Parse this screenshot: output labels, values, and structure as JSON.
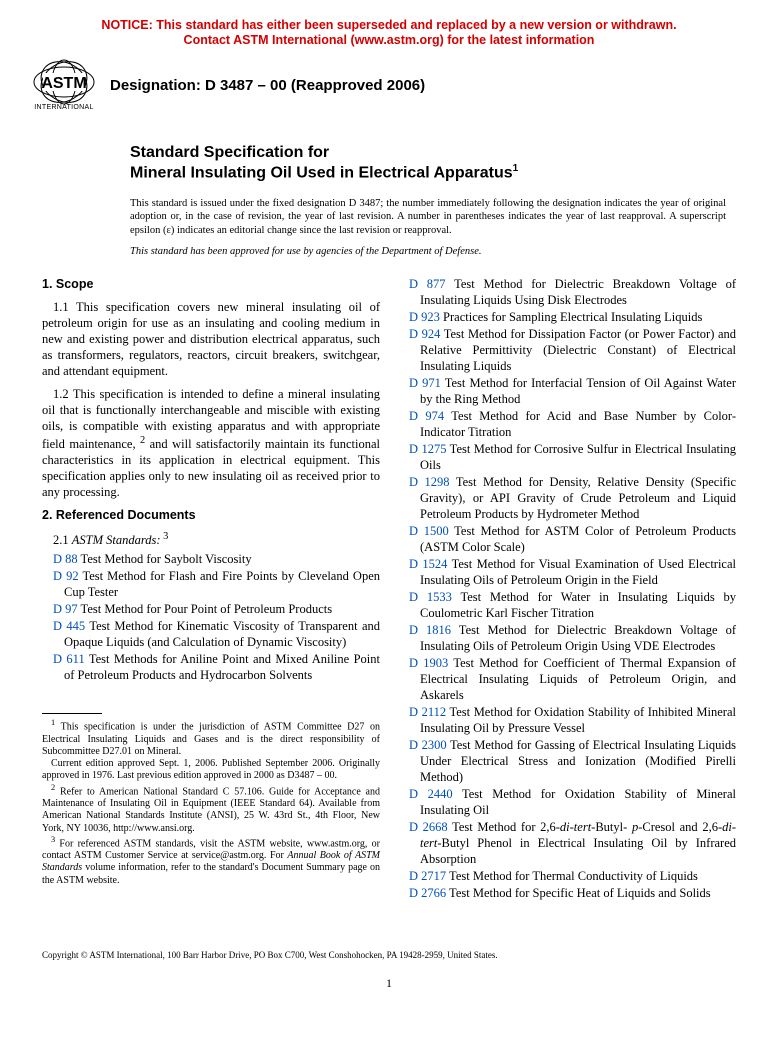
{
  "notice": {
    "line1": "NOTICE: This standard has either been superseded and replaced by a new version or withdrawn.",
    "line2": "Contact ASTM International (www.astm.org) for the latest information"
  },
  "header": {
    "logo_sub": "INTERNATIONAL",
    "designation": "Designation: D 3487 – 00 (Reapproved 2006)"
  },
  "title": {
    "line1": "Standard Specification for",
    "line2": "Mineral Insulating Oil Used in Electrical Apparatus",
    "sup": "1"
  },
  "intro_parts": {
    "a": "This standard is issued under the fixed designation D 3487; the number immediately following the designation indicates the year of original adoption or, in the case of revision, the year of last revision. A number in parentheses indicates the year of last reapproval. A superscript epsilon (",
    "b": ") indicates an editorial change since the last revision or reapproval."
  },
  "dod": "This standard has been approved for use by agencies of the Department of Defense.",
  "sections": {
    "scope_head": "1. Scope",
    "scope_p1": "1.1 This specification covers new mineral insulating oil of petroleum origin for use as an insulating and cooling medium in new and existing power and distribution electrical apparatus, such as transformers, regulators, reactors, circuit breakers, switchgear, and attendant equipment.",
    "scope_p2_parts": {
      "a": "1.2 This specification is intended to define a mineral insulating oil that is functionally interchangeable and miscible with existing oils, is compatible with existing apparatus and with appropriate field maintenance, ",
      "b": " and will satisfactorily maintain its functional characteristics in its application in electrical equipment. This specification applies only to new insulating oil as received prior to any processing."
    },
    "refdoc_head": "2. Referenced Documents",
    "astm_std_parts": {
      "a": "2.1 ",
      "b": "ASTM Standards:",
      "c": " 3"
    }
  },
  "refs_left": [
    {
      "code": "D 88",
      "text": " Test Method for Saybolt Viscosity"
    },
    {
      "code": "D 92",
      "text": " Test Method for Flash and Fire Points by Cleveland Open Cup Tester"
    },
    {
      "code": "D 97",
      "text": " Test Method for Pour Point of Petroleum Products"
    },
    {
      "code": "D 445",
      "text": " Test Method for Kinematic Viscosity of Transparent and Opaque Liquids (and Calculation of Dynamic Viscosity)"
    },
    {
      "code": "D 611",
      "text": " Test Methods for Aniline Point and Mixed Aniline Point of Petroleum Products and Hydrocarbon Solvents"
    }
  ],
  "refs_right": [
    {
      "code": "D 877",
      "text": " Test Method for Dielectric Breakdown Voltage of Insulating Liquids Using Disk Electrodes"
    },
    {
      "code": "D 923",
      "text": " Practices for Sampling Electrical Insulating Liquids"
    },
    {
      "code": "D 924",
      "text": " Test Method for Dissipation Factor (or Power Factor) and Relative Permittivity (Dielectric Constant) of Electrical Insulating Liquids"
    },
    {
      "code": "D 971",
      "text": " Test Method for Interfacial Tension of Oil Against Water by the Ring Method"
    },
    {
      "code": "D 974",
      "text": " Test Method for Acid and Base Number by Color-Indicator Titration"
    },
    {
      "code": "D 1275",
      "text": " Test Method for Corrosive Sulfur in Electrical Insulating Oils"
    },
    {
      "code": "D 1298",
      "text": " Test Method for Density, Relative Density (Specific Gravity), or API Gravity of Crude Petroleum and Liquid Petroleum Products by Hydrometer Method"
    },
    {
      "code": "D 1500",
      "text": " Test Method for ASTM Color of Petroleum Products (ASTM Color Scale)"
    },
    {
      "code": "D 1524",
      "text": " Test Method for Visual Examination of Used Electrical Insulating Oils of Petroleum Origin in the Field"
    },
    {
      "code": "D 1533",
      "text": " Test Method for Water in Insulating Liquids by Coulometric Karl Fischer Titration"
    },
    {
      "code": "D 1816",
      "text": " Test Method for Dielectric Breakdown Voltage of Insulating Oils of Petroleum Origin Using VDE Electrodes"
    },
    {
      "code": "D 1903",
      "text": " Test Method for Coefficient of Thermal Expansion of Electrical Insulating Liquids of Petroleum Origin, and Askarels"
    },
    {
      "code": "D 2112",
      "text": " Test Method for Oxidation Stability of Inhibited Mineral Insulating Oil by Pressure Vessel"
    },
    {
      "code": "D 2300",
      "text": " Test Method for Gassing of Electrical Insulating Liquids Under Electrical Stress and Ionization (Modified Pirelli Method)"
    },
    {
      "code": "D 2440",
      "text": " Test Method for Oxidation Stability of Mineral Insulating Oil"
    },
    {
      "code": "D 2668",
      "text_html": " Test Method for 2,6-<em>di-tert</em>-Butyl- <em>p</em>-Cresol and 2,6-<em>di-tert</em>-Butyl Phenol in Electrical Insulating Oil by Infrared Absorption"
    },
    {
      "code": "D 2717",
      "text": " Test Method for Thermal Conductivity of Liquids"
    },
    {
      "code": "D 2766",
      "text": " Test Method for Specific Heat of Liquids and Solids"
    }
  ],
  "footnotes": {
    "f1_html": "<sup>1</sup> This specification is under the jurisdiction of ASTM Committee D27 on Electrical Insulating Liquids and Gases and is the direct responsibility of Subcommittee D27.01 on Mineral.",
    "f1b": "Current edition approved Sept. 1, 2006. Published September 2006. Originally approved in 1976. Last previous edition approved in 2000 as D3487 – 00.",
    "f2_html": "<sup>2</sup> Refer to American National Standard C 57.106. Guide for Acceptance and Maintenance of Insulating Oil in Equipment (IEEE Standard 64). Available from American National Standards Institute (ANSI), 25 W. 43rd St., 4th Floor, New York, NY 10036, http://www.ansi.org.",
    "f3_html": "<sup>3</sup> For referenced ASTM standards, visit the ASTM website, www.astm.org, or contact ASTM Customer Service at service@astm.org. For <em>Annual Book of ASTM Standards</em> volume information, refer to the standard's Document Summary page on the ASTM website."
  },
  "copyright": "Copyright © ASTM International, 100 Barr Harbor Drive, PO Box C700, West Conshohocken, PA 19428-2959, United States.",
  "page_num": "1",
  "colors": {
    "notice": "#d40000",
    "link": "#0050b3",
    "text": "#000000",
    "bg": "#ffffff"
  }
}
